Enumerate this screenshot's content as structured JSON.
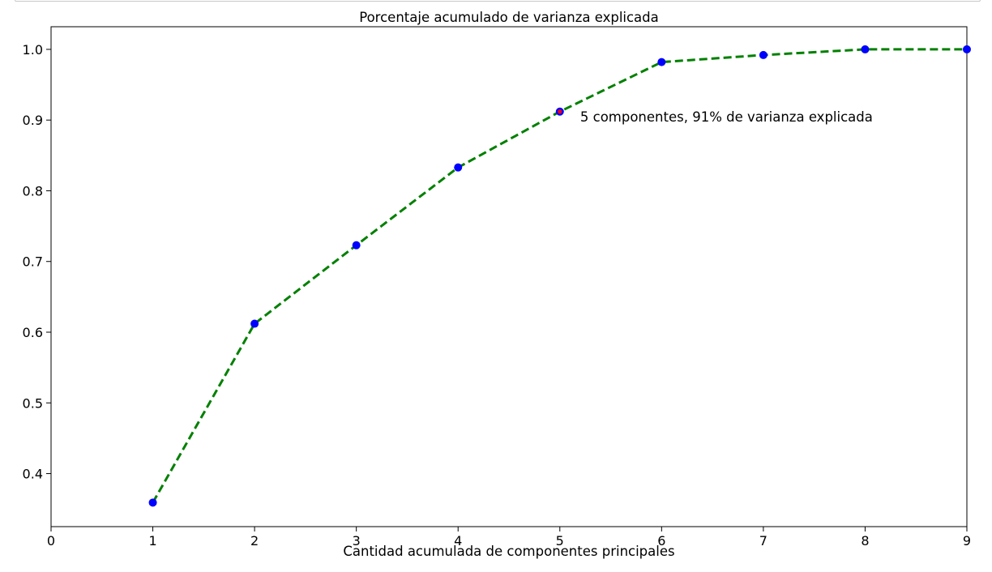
{
  "chart_data": {
    "type": "line",
    "title": "Porcentaje acumulado de varianza explicada",
    "xlabel": "Cantidad acumulada de componentes principales",
    "ylabel": "",
    "xlim": [
      0,
      9
    ],
    "ylim": [
      0.325,
      1.032
    ],
    "x_ticks": [
      0,
      1,
      2,
      3,
      4,
      5,
      6,
      7,
      8,
      9
    ],
    "y_ticks": [
      0.4,
      0.5,
      0.6,
      0.7,
      0.8,
      0.9,
      1.0
    ],
    "x_tick_labels": [
      "0",
      "1",
      "2",
      "3",
      "4",
      "5",
      "6",
      "7",
      "8",
      "9"
    ],
    "y_tick_labels": [
      "0.4",
      "0.5",
      "0.6",
      "0.7",
      "0.8",
      "0.9",
      "1.0"
    ],
    "grid": false,
    "legend": "none",
    "series": [
      {
        "x": [
          1,
          2,
          3,
          4,
          5,
          6,
          7,
          8,
          9
        ],
        "values": [
          0.359,
          0.612,
          0.723,
          0.833,
          0.912,
          0.982,
          0.992,
          1.0,
          1.0
        ],
        "line_color": "#008000",
        "line_style": "dashed",
        "marker_color": "#0000ff"
      }
    ],
    "highlight": {
      "x": 5,
      "y": 0.912,
      "marker_color": "#ff0000"
    },
    "annotations": [
      {
        "text": "5 componentes, 91% de varianza explicada",
        "x": 5.2,
        "y": 0.905
      }
    ]
  }
}
